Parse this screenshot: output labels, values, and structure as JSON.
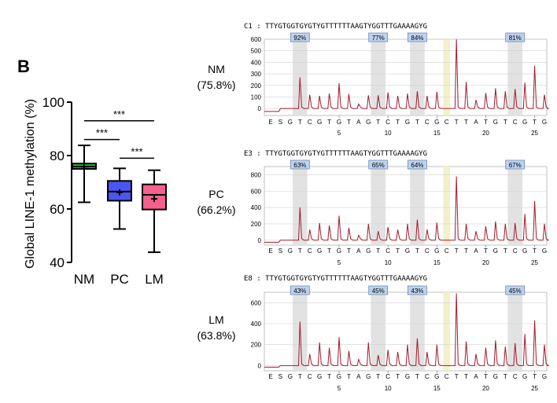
{
  "panel_label": "B",
  "boxplot_colors": [
    "#22c42a",
    "#4b56f0",
    "#f5608d"
  ],
  "trace_color": "#a01c2c",
  "shade_color": "#e2e2e2",
  "dispensation_shade_color": "#f3f1cc",
  "badge_fill": "#bcd3ef",
  "badge_stroke": "#6e8ab5",
  "pyro_x_ticks": [
    "5",
    "10",
    "15",
    "20",
    "25"
  ],
  "pyro_x_tick_positions": [
    5,
    10,
    15,
    20,
    25
  ],
  "chart_data": [
    {
      "type": "boxplot",
      "title": "",
      "ylabel": "Global LINE-1 methylation (%)",
      "xlabel": "",
      "ylim": [
        40,
        100
      ],
      "yticks": [
        40,
        60,
        80,
        100
      ],
      "categories": [
        "NM",
        "PC",
        "LM"
      ],
      "boxes": [
        {
          "name": "NM",
          "min": 62.5,
          "q1": 75.0,
          "median": 75.9,
          "q3": 77.0,
          "max": 83.8,
          "mean": 75.8
        },
        {
          "name": "PC",
          "min": 52.5,
          "q1": 63.1,
          "median": 66.5,
          "q3": 70.5,
          "max": 75.2,
          "mean": 66.2
        },
        {
          "name": "LM",
          "min": 43.8,
          "q1": 59.8,
          "median": 65.3,
          "q3": 69.2,
          "max": 74.5,
          "mean": 63.8
        }
      ],
      "significance": [
        {
          "from": "NM",
          "to": "LM",
          "label": "***",
          "y": 93
        },
        {
          "from": "NM",
          "to": "PC",
          "label": "***",
          "y": 86
        },
        {
          "from": "PC",
          "to": "LM",
          "label": "***",
          "y": 79
        }
      ]
    },
    {
      "type": "pyrogram",
      "sample_id": "C1",
      "group": "NM",
      "group_value": "(75.8%)",
      "sequence_label": "C1 : TTYGTGGTGYGTYGTTTTTTAAGTYGGTTTGAAAAGYG",
      "ylim": [
        -60,
        600
      ],
      "yticks": [
        0,
        100,
        200,
        300,
        400,
        500,
        600
      ],
      "dispensation": [
        "E",
        "S",
        "G",
        "T",
        "C",
        "G",
        "T",
        "G",
        "T",
        "A",
        "G",
        "T",
        "C",
        "T",
        "G",
        "T",
        "C",
        "G",
        "C",
        "T",
        "T",
        "A",
        "T",
        "G",
        "T",
        "C",
        "G",
        "T",
        "G"
      ],
      "peaks": [
        0,
        0,
        0,
        270,
        120,
        110,
        130,
        220,
        125,
        40,
        115,
        115,
        140,
        110,
        130,
        150,
        110,
        145,
        0,
        600,
        230,
        75,
        135,
        175,
        150,
        170,
        225,
        370,
        120
      ],
      "shaded_positions": [
        3,
        11,
        15,
        25
      ],
      "highlight_position": 18,
      "cpg_methylation": [
        {
          "position": 3,
          "label": "92%"
        },
        {
          "position": 11,
          "label": "77%"
        },
        {
          "position": 15,
          "label": "84%"
        },
        {
          "position": 25,
          "label": "81%"
        }
      ]
    },
    {
      "type": "pyrogram",
      "sample_id": "E3",
      "group": "PC",
      "group_value": "(66.2%)",
      "sequence_label": "E3 : TTYGTGGTGYGTYGTTTTTTAAGTYGGTTTGAAAAGYG",
      "ylim": [
        -60,
        900
      ],
      "yticks": [
        0,
        200,
        400,
        600,
        800
      ],
      "dispensation": [
        "E",
        "S",
        "G",
        "T",
        "C",
        "G",
        "T",
        "G",
        "T",
        "A",
        "G",
        "T",
        "C",
        "T",
        "G",
        "T",
        "C",
        "G",
        "C",
        "T",
        "T",
        "A",
        "T",
        "G",
        "T",
        "C",
        "G",
        "T",
        "G"
      ],
      "peaks": [
        0,
        0,
        0,
        400,
        130,
        210,
        180,
        300,
        150,
        60,
        200,
        110,
        160,
        130,
        200,
        250,
        130,
        215,
        0,
        780,
        200,
        110,
        170,
        230,
        200,
        210,
        320,
        480,
        200
      ],
      "shaded_positions": [
        3,
        11,
        15,
        25
      ],
      "highlight_position": 18,
      "cpg_methylation": [
        {
          "position": 3,
          "label": "63%"
        },
        {
          "position": 11,
          "label": "65%"
        },
        {
          "position": 15,
          "label": "64%"
        },
        {
          "position": 25,
          "label": "67%"
        }
      ]
    },
    {
      "type": "pyrogram",
      "sample_id": "E8",
      "group": "LM",
      "group_value": "(63.8%)",
      "sequence_label": "E8 : TTYGTGGTGYGTYGTTTTTTAAGTYGGTTTGAAAAGYG",
      "ylim": [
        -50,
        700
      ],
      "yticks": [
        0,
        200,
        400,
        600
      ],
      "dispensation": [
        "E",
        "S",
        "G",
        "T",
        "C",
        "G",
        "T",
        "G",
        "T",
        "A",
        "G",
        "T",
        "C",
        "T",
        "G",
        "T",
        "C",
        "G",
        "C",
        "T",
        "T",
        "A",
        "T",
        "G",
        "T",
        "C",
        "G",
        "T",
        "G"
      ],
      "peaks": [
        0,
        0,
        0,
        420,
        110,
        220,
        170,
        270,
        140,
        60,
        220,
        100,
        150,
        130,
        200,
        260,
        130,
        200,
        0,
        690,
        230,
        110,
        170,
        240,
        180,
        215,
        300,
        430,
        200
      ],
      "shaded_positions": [
        3,
        11,
        15,
        25
      ],
      "highlight_position": 18,
      "cpg_methylation": [
        {
          "position": 3,
          "label": "43%"
        },
        {
          "position": 11,
          "label": "45%"
        },
        {
          "position": 15,
          "label": "43%"
        },
        {
          "position": 25,
          "label": "45%"
        }
      ]
    }
  ]
}
